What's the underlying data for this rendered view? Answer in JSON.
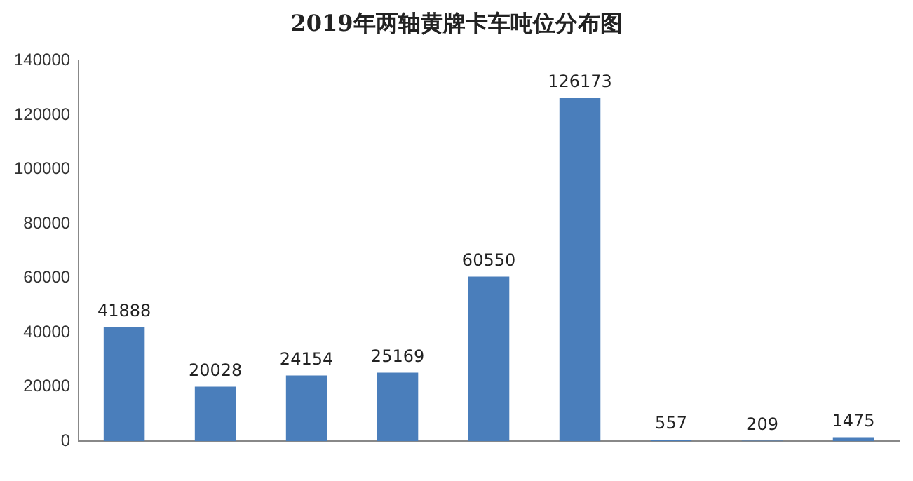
{
  "chart_data": {
    "type": "bar",
    "title": "2019年两轴黄牌卡车吨位分布图",
    "categories": [
      null,
      null,
      null,
      null,
      null,
      null,
      null,
      null,
      null
    ],
    "values": [
      41888,
      20028,
      24154,
      25169,
      60550,
      126173,
      557,
      209,
      1475
    ],
    "color": "#4a7ebb",
    "ylim": [
      0,
      140000
    ],
    "yticks": [
      0,
      20000,
      40000,
      60000,
      80000,
      100000,
      120000,
      140000
    ],
    "grid": false,
    "data_labels": true
  }
}
